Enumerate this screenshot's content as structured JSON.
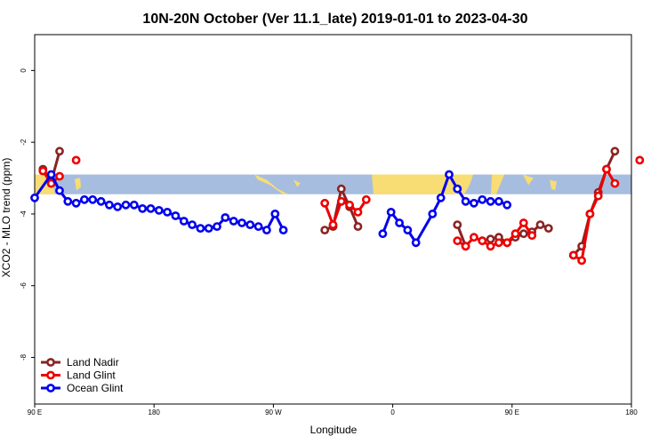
{
  "chart_data": {
    "type": "line",
    "title": "10N-20N October (Ver 11.1_late)   2019-01-01 to 2023-04-30",
    "xlabel": "Longitude",
    "ylabel": "XCO2 - MLO trend (ppm)",
    "xlim": [
      90,
      450
    ],
    "ylim": [
      -9.3,
      1.0
    ],
    "x_ticks": [
      {
        "value": 90,
        "label": "90 E"
      },
      {
        "value": 180,
        "label": "180"
      },
      {
        "value": 270,
        "label": "90 W"
      },
      {
        "value": 360,
        "label": "0"
      },
      {
        "value": 450,
        "label": "90 E"
      },
      {
        "value": 540,
        "label": "180"
      }
    ],
    "y_ticks": [
      {
        "value": 0,
        "label": "0"
      },
      {
        "value": -2,
        "label": "-2"
      },
      {
        "value": -4,
        "label": "-4"
      },
      {
        "value": -6,
        "label": "-6"
      },
      {
        "value": -8,
        "label": "-8"
      }
    ],
    "grid": false,
    "legend_position": "bottom-left",
    "map_strip": {
      "y_top": -2.9,
      "y_bottom": -3.45,
      "ocean_color": "#a7bddf",
      "land_color": "#f8dc74"
    },
    "series": [
      {
        "name": "Land Nadir",
        "color": "#8b2323",
        "segments": [
          [
            [
              95,
              -2.75
            ],
            [
              100,
              -3.1
            ],
            [
              105,
              -2.25
            ]
          ],
          [
            [
              265,
              -4.45
            ],
            [
              270,
              -4.35
            ],
            [
              275,
              -3.3
            ],
            [
              280,
              -3.8
            ],
            [
              285,
              -4.35
            ]
          ],
          [
            [
              345,
              -4.3
            ],
            [
              350,
              -4.9
            ]
          ],
          [
            [
              360,
              -4.75
            ],
            [
              365,
              -4.7
            ],
            [
              370,
              -4.65
            ],
            [
              375,
              -4.8
            ],
            [
              380,
              -4.65
            ],
            [
              385,
              -4.55
            ],
            [
              390,
              -4.5
            ],
            [
              395,
              -4.3
            ],
            [
              400,
              -4.4
            ]
          ],
          [
            [
              415,
              -5.15
            ],
            [
              420,
              -4.9
            ],
            [
              425,
              -4.0
            ],
            [
              430,
              -3.4
            ],
            [
              435,
              -2.75
            ],
            [
              440,
              -2.25
            ]
          ]
        ]
      },
      {
        "name": "Land Glint",
        "color": "#ee0000",
        "segments": [
          [
            [
              95,
              -2.8
            ],
            [
              100,
              -3.15
            ],
            [
              105,
              -2.95
            ]
          ],
          [
            [
              115,
              -2.5
            ]
          ],
          [
            [
              265,
              -3.7
            ],
            [
              270,
              -4.3
            ],
            [
              275,
              -3.65
            ],
            [
              280,
              -3.75
            ],
            [
              285,
              -3.95
            ],
            [
              290,
              -3.6
            ]
          ],
          [
            [
              345,
              -4.75
            ],
            [
              350,
              -4.9
            ],
            [
              355,
              -4.65
            ],
            [
              360,
              -4.75
            ],
            [
              365,
              -4.9
            ],
            [
              370,
              -4.8
            ],
            [
              375,
              -4.8
            ],
            [
              380,
              -4.55
            ],
            [
              385,
              -4.25
            ],
            [
              390,
              -4.6
            ]
          ],
          [
            [
              415,
              -5.15
            ],
            [
              420,
              -5.3
            ],
            [
              425,
              -4.0
            ],
            [
              430,
              -3.5
            ],
            [
              435,
              -2.75
            ],
            [
              440,
              -3.15
            ]
          ],
          [
            [
              455,
              -2.5
            ]
          ]
        ]
      },
      {
        "name": "Ocean Glint",
        "color": "#0000ee",
        "segments": [
          [
            [
              90,
              -3.55
            ],
            [
              100,
              -2.9
            ],
            [
              105,
              -3.35
            ],
            [
              110,
              -3.65
            ],
            [
              115,
              -3.7
            ],
            [
              120,
              -3.6
            ],
            [
              125,
              -3.6
            ],
            [
              130,
              -3.65
            ],
            [
              135,
              -3.75
            ],
            [
              140,
              -3.8
            ],
            [
              145,
              -3.75
            ],
            [
              150,
              -3.75
            ],
            [
              155,
              -3.85
            ],
            [
              160,
              -3.85
            ],
            [
              165,
              -3.9
            ],
            [
              170,
              -3.95
            ],
            [
              175,
              -4.05
            ],
            [
              180,
              -4.2
            ],
            [
              185,
              -4.3
            ],
            [
              190,
              -4.4
            ],
            [
              195,
              -4.4
            ],
            [
              200,
              -4.35
            ],
            [
              205,
              -4.1
            ],
            [
              210,
              -4.2
            ],
            [
              215,
              -4.25
            ],
            [
              220,
              -4.3
            ],
            [
              225,
              -4.35
            ],
            [
              230,
              -4.45
            ],
            [
              235,
              -4.0
            ],
            [
              240,
              -4.45
            ]
          ],
          [
            [
              300,
              -4.55
            ],
            [
              305,
              -3.95
            ],
            [
              310,
              -4.25
            ],
            [
              315,
              -4.45
            ],
            [
              320,
              -4.8
            ],
            [
              330,
              -4.0
            ],
            [
              335,
              -3.55
            ],
            [
              340,
              -2.9
            ],
            [
              345,
              -3.3
            ],
            [
              350,
              -3.65
            ],
            [
              355,
              -3.7
            ],
            [
              360,
              -3.6
            ],
            [
              365,
              -3.65
            ],
            [
              370,
              -3.65
            ],
            [
              375,
              -3.75
            ]
          ]
        ]
      }
    ]
  }
}
